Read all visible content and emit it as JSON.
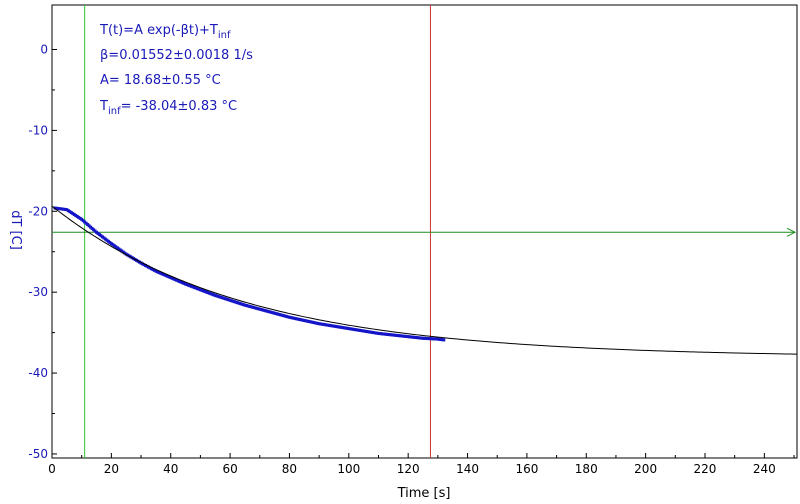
{
  "chart_data": {
    "type": "scatter",
    "xlabel": "Time [s]",
    "ylabel": "dT [C]",
    "xlim": [
      0,
      251
    ],
    "ylim": [
      -50.5,
      5.5
    ],
    "x_ticks": [
      0,
      20,
      40,
      60,
      80,
      100,
      120,
      140,
      160,
      180,
      200,
      220,
      240
    ],
    "y_ticks": [
      0,
      -10,
      -20,
      -30,
      -40,
      -50
    ],
    "x_tick_labels": [
      "0",
      "20",
      "40",
      "60",
      "80",
      "100",
      "120",
      "140",
      "160",
      "180",
      "200",
      "220",
      "240"
    ],
    "y_tick_labels": [
      "0",
      "-10",
      "-20",
      "-30",
      "-40",
      "-50"
    ],
    "grid": false,
    "fit": {
      "equation_prefix": "T(t)=A exp(-βt)+T",
      "equation_sub": "inf",
      "beta_text": "β=0.01552±0.0018 1/s",
      "a_text": "A= 18.68±0.55 °C",
      "tinf_prefix": "T",
      "tinf_sub": "inf",
      "tinf_text": "= -38.04±0.83 °C",
      "A": 18.68,
      "beta": 0.01552,
      "T_inf": -38.04,
      "x_range": [
        0,
        251
      ],
      "color": "#000000"
    },
    "measured_series": {
      "x_range": [
        1,
        132
      ],
      "y_range": [
        -19.5,
        -35.9
      ],
      "points": [
        [
          1,
          -19.6
        ],
        [
          5,
          -19.8
        ],
        [
          10,
          -21.0
        ],
        [
          15,
          -22.6
        ],
        [
          20,
          -24.0
        ],
        [
          25,
          -25.3
        ],
        [
          30,
          -26.4
        ],
        [
          35,
          -27.4
        ],
        [
          40,
          -28.2
        ],
        [
          45,
          -29.0
        ],
        [
          50,
          -29.7
        ],
        [
          55,
          -30.4
        ],
        [
          60,
          -31.0
        ],
        [
          65,
          -31.6
        ],
        [
          70,
          -32.1
        ],
        [
          75,
          -32.6
        ],
        [
          80,
          -33.1
        ],
        [
          85,
          -33.5
        ],
        [
          90,
          -33.9
        ],
        [
          95,
          -34.2
        ],
        [
          100,
          -34.5
        ],
        [
          105,
          -34.8
        ],
        [
          110,
          -35.1
        ],
        [
          115,
          -35.3
        ],
        [
          120,
          -35.5
        ],
        [
          125,
          -35.7
        ],
        [
          130,
          -35.8
        ],
        [
          132,
          -35.9
        ]
      ],
      "color": "#1414c8"
    },
    "cursors": {
      "vertical_green_x": 11,
      "vertical_red_x": 127.5,
      "horizontal_green_y": -22.6,
      "green_color": "#2ec82e",
      "red_color": "#c83232",
      "hline_color": "#1e8c1e"
    },
    "colors": {
      "ytick": "#1a1ab8",
      "ylabel": "#1a1ab8",
      "xlabel": "#000000",
      "annotation": "#1a1ab8"
    }
  }
}
